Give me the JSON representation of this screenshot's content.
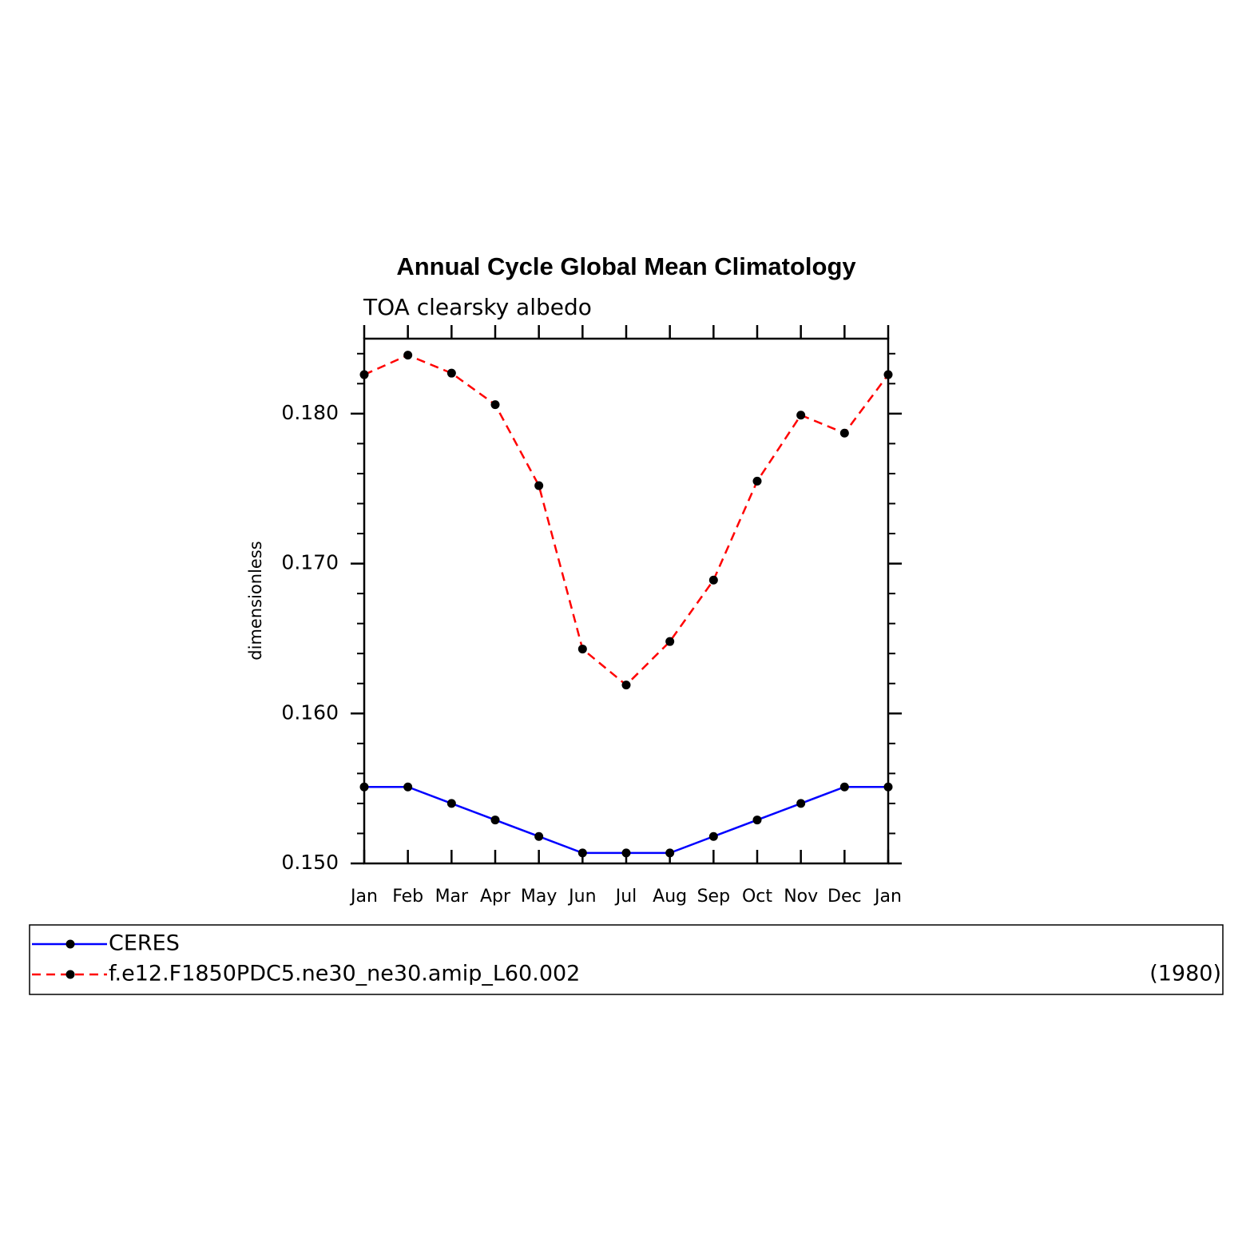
{
  "chart_data": {
    "type": "line",
    "title": "Annual Cycle Global Mean Climatology",
    "subtitle": "TOA clearsky albedo",
    "y_label": "dimensionless",
    "categories": [
      "Jan",
      "Feb",
      "Mar",
      "Apr",
      "May",
      "Jun",
      "Jul",
      "Aug",
      "Sep",
      "Oct",
      "Nov",
      "Dec",
      "Jan"
    ],
    "series": [
      {
        "name": "CERES",
        "color": "#0000ff",
        "dash": false,
        "marker_color": "#000000",
        "values": [
          0.1551,
          0.1551,
          0.154,
          0.1529,
          0.1518,
          0.1507,
          0.1507,
          0.1507,
          0.1518,
          0.1529,
          0.154,
          0.1551,
          0.1551
        ]
      },
      {
        "name": "f.e12.F1850PDC5.ne30_ne30.amip_L60.002",
        "note": "(1980)",
        "color": "#ff0000",
        "dash": true,
        "marker_color": "#000000",
        "values": [
          0.1826,
          0.1839,
          0.1827,
          0.1806,
          0.1752,
          0.1643,
          0.1619,
          0.1648,
          0.1689,
          0.1755,
          0.1799,
          0.1787,
          0.1826
        ]
      }
    ],
    "ylim": [
      0.15,
      0.185
    ],
    "yticks": [
      {
        "value": 0.15,
        "label": "0.150"
      },
      {
        "value": 0.16,
        "label": "0.160"
      },
      {
        "value": 0.17,
        "label": "0.170"
      },
      {
        "value": 0.18,
        "label": "0.180"
      }
    ],
    "yminorticks": [
      0.152,
      0.154,
      0.156,
      0.158,
      0.162,
      0.164,
      0.166,
      0.168,
      0.172,
      0.174,
      0.176,
      0.178,
      0.182,
      0.184
    ],
    "grid": false
  }
}
